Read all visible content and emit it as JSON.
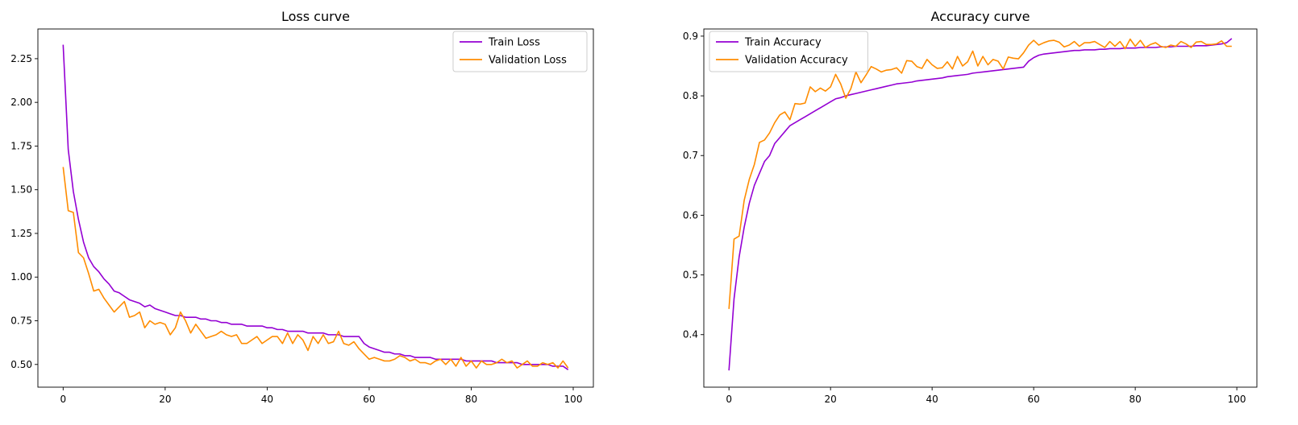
{
  "chart_data": [
    {
      "type": "line",
      "title": "Loss curve",
      "xlabel": "",
      "ylabel": "",
      "xlim": [
        -4.95,
        103.95
      ],
      "ylim": [
        0.37,
        2.42
      ],
      "xticks": [
        0,
        20,
        40,
        60,
        80,
        100
      ],
      "yticks": [
        0.5,
        0.75,
        1.0,
        1.25,
        1.5,
        1.75,
        2.0,
        2.25
      ],
      "ytick_labels": [
        "0.50",
        "0.75",
        "1.00",
        "1.25",
        "1.50",
        "1.75",
        "2.00",
        "2.25"
      ],
      "legend_position": "top-right",
      "grid": false,
      "series": [
        {
          "name": "Train Loss",
          "color": "#9400d3",
          "x_start": 0,
          "values": [
            2.33,
            1.73,
            1.49,
            1.33,
            1.2,
            1.11,
            1.06,
            1.03,
            0.99,
            0.96,
            0.92,
            0.91,
            0.89,
            0.87,
            0.86,
            0.85,
            0.83,
            0.84,
            0.82,
            0.81,
            0.8,
            0.79,
            0.78,
            0.78,
            0.77,
            0.77,
            0.77,
            0.76,
            0.76,
            0.75,
            0.75,
            0.74,
            0.74,
            0.73,
            0.73,
            0.73,
            0.72,
            0.72,
            0.72,
            0.72,
            0.71,
            0.71,
            0.7,
            0.7,
            0.69,
            0.69,
            0.69,
            0.69,
            0.68,
            0.68,
            0.68,
            0.68,
            0.67,
            0.67,
            0.67,
            0.66,
            0.66,
            0.66,
            0.66,
            0.62,
            0.6,
            0.59,
            0.58,
            0.57,
            0.57,
            0.56,
            0.56,
            0.55,
            0.55,
            0.54,
            0.54,
            0.54,
            0.54,
            0.53,
            0.53,
            0.53,
            0.53,
            0.53,
            0.53,
            0.52,
            0.52,
            0.52,
            0.52,
            0.52,
            0.52,
            0.51,
            0.51,
            0.51,
            0.51,
            0.51,
            0.5,
            0.5,
            0.5,
            0.5,
            0.5,
            0.5,
            0.49,
            0.49,
            0.49,
            0.47
          ]
        },
        {
          "name": "Validation Loss",
          "color": "#ff8c00",
          "x_start": 0,
          "values": [
            1.63,
            1.38,
            1.37,
            1.14,
            1.11,
            1.02,
            0.92,
            0.93,
            0.88,
            0.84,
            0.8,
            0.83,
            0.86,
            0.77,
            0.78,
            0.8,
            0.71,
            0.75,
            0.73,
            0.74,
            0.73,
            0.67,
            0.71,
            0.8,
            0.75,
            0.68,
            0.73,
            0.69,
            0.65,
            0.66,
            0.67,
            0.69,
            0.67,
            0.66,
            0.67,
            0.62,
            0.62,
            0.64,
            0.66,
            0.62,
            0.64,
            0.66,
            0.66,
            0.62,
            0.68,
            0.62,
            0.67,
            0.64,
            0.58,
            0.66,
            0.62,
            0.67,
            0.62,
            0.63,
            0.69,
            0.62,
            0.61,
            0.63,
            0.59,
            0.56,
            0.53,
            0.54,
            0.53,
            0.52,
            0.52,
            0.53,
            0.55,
            0.54,
            0.52,
            0.53,
            0.51,
            0.51,
            0.5,
            0.52,
            0.53,
            0.5,
            0.53,
            0.49,
            0.54,
            0.49,
            0.52,
            0.48,
            0.52,
            0.5,
            0.5,
            0.51,
            0.53,
            0.51,
            0.52,
            0.48,
            0.5,
            0.52,
            0.49,
            0.49,
            0.51,
            0.5,
            0.51,
            0.48,
            0.52,
            0.48
          ]
        }
      ]
    },
    {
      "type": "line",
      "title": "Accuracy curve",
      "xlabel": "",
      "ylabel": "",
      "xlim": [
        -4.95,
        103.95
      ],
      "ylim": [
        0.312,
        0.912
      ],
      "xticks": [
        0,
        20,
        40,
        60,
        80,
        100
      ],
      "yticks": [
        0.4,
        0.5,
        0.6,
        0.7,
        0.8,
        0.9
      ],
      "ytick_labels": [
        "0.4",
        "0.5",
        "0.6",
        "0.7",
        "0.8",
        "0.9"
      ],
      "legend_position": "top-left",
      "grid": false,
      "series": [
        {
          "name": "Train Accuracy",
          "color": "#9400d3",
          "x_start": 0,
          "values": [
            0.34,
            0.46,
            0.53,
            0.58,
            0.62,
            0.65,
            0.67,
            0.69,
            0.7,
            0.72,
            0.73,
            0.74,
            0.75,
            0.755,
            0.76,
            0.765,
            0.77,
            0.775,
            0.78,
            0.785,
            0.79,
            0.795,
            0.797,
            0.8,
            0.802,
            0.804,
            0.806,
            0.808,
            0.81,
            0.812,
            0.814,
            0.816,
            0.818,
            0.82,
            0.821,
            0.822,
            0.823,
            0.825,
            0.826,
            0.827,
            0.828,
            0.829,
            0.83,
            0.832,
            0.833,
            0.834,
            0.835,
            0.836,
            0.838,
            0.839,
            0.84,
            0.841,
            0.842,
            0.843,
            0.844,
            0.845,
            0.846,
            0.847,
            0.848,
            0.858,
            0.864,
            0.868,
            0.87,
            0.871,
            0.872,
            0.873,
            0.874,
            0.875,
            0.876,
            0.876,
            0.877,
            0.877,
            0.877,
            0.878,
            0.878,
            0.879,
            0.879,
            0.879,
            0.88,
            0.88,
            0.88,
            0.881,
            0.881,
            0.881,
            0.881,
            0.882,
            0.882,
            0.882,
            0.883,
            0.883,
            0.883,
            0.883,
            0.884,
            0.884,
            0.884,
            0.885,
            0.886,
            0.887,
            0.889,
            0.896
          ]
        },
        {
          "name": "Validation Accuracy",
          "color": "#ff8c00",
          "x_start": 0,
          "values": [
            0.443,
            0.56,
            0.565,
            0.625,
            0.66,
            0.685,
            0.722,
            0.726,
            0.738,
            0.755,
            0.768,
            0.773,
            0.76,
            0.787,
            0.786,
            0.788,
            0.815,
            0.807,
            0.813,
            0.808,
            0.815,
            0.836,
            0.82,
            0.796,
            0.812,
            0.84,
            0.822,
            0.835,
            0.849,
            0.845,
            0.84,
            0.843,
            0.844,
            0.847,
            0.838,
            0.859,
            0.858,
            0.849,
            0.846,
            0.861,
            0.852,
            0.846,
            0.847,
            0.857,
            0.845,
            0.866,
            0.85,
            0.857,
            0.875,
            0.85,
            0.866,
            0.852,
            0.861,
            0.858,
            0.845,
            0.865,
            0.863,
            0.862,
            0.872,
            0.885,
            0.893,
            0.885,
            0.889,
            0.892,
            0.893,
            0.89,
            0.882,
            0.885,
            0.891,
            0.883,
            0.889,
            0.889,
            0.891,
            0.886,
            0.881,
            0.891,
            0.883,
            0.891,
            0.879,
            0.895,
            0.883,
            0.893,
            0.881,
            0.886,
            0.889,
            0.883,
            0.881,
            0.885,
            0.883,
            0.891,
            0.887,
            0.881,
            0.89,
            0.891,
            0.886,
            0.886,
            0.887,
            0.892,
            0.883,
            0.883
          ]
        }
      ]
    }
  ]
}
